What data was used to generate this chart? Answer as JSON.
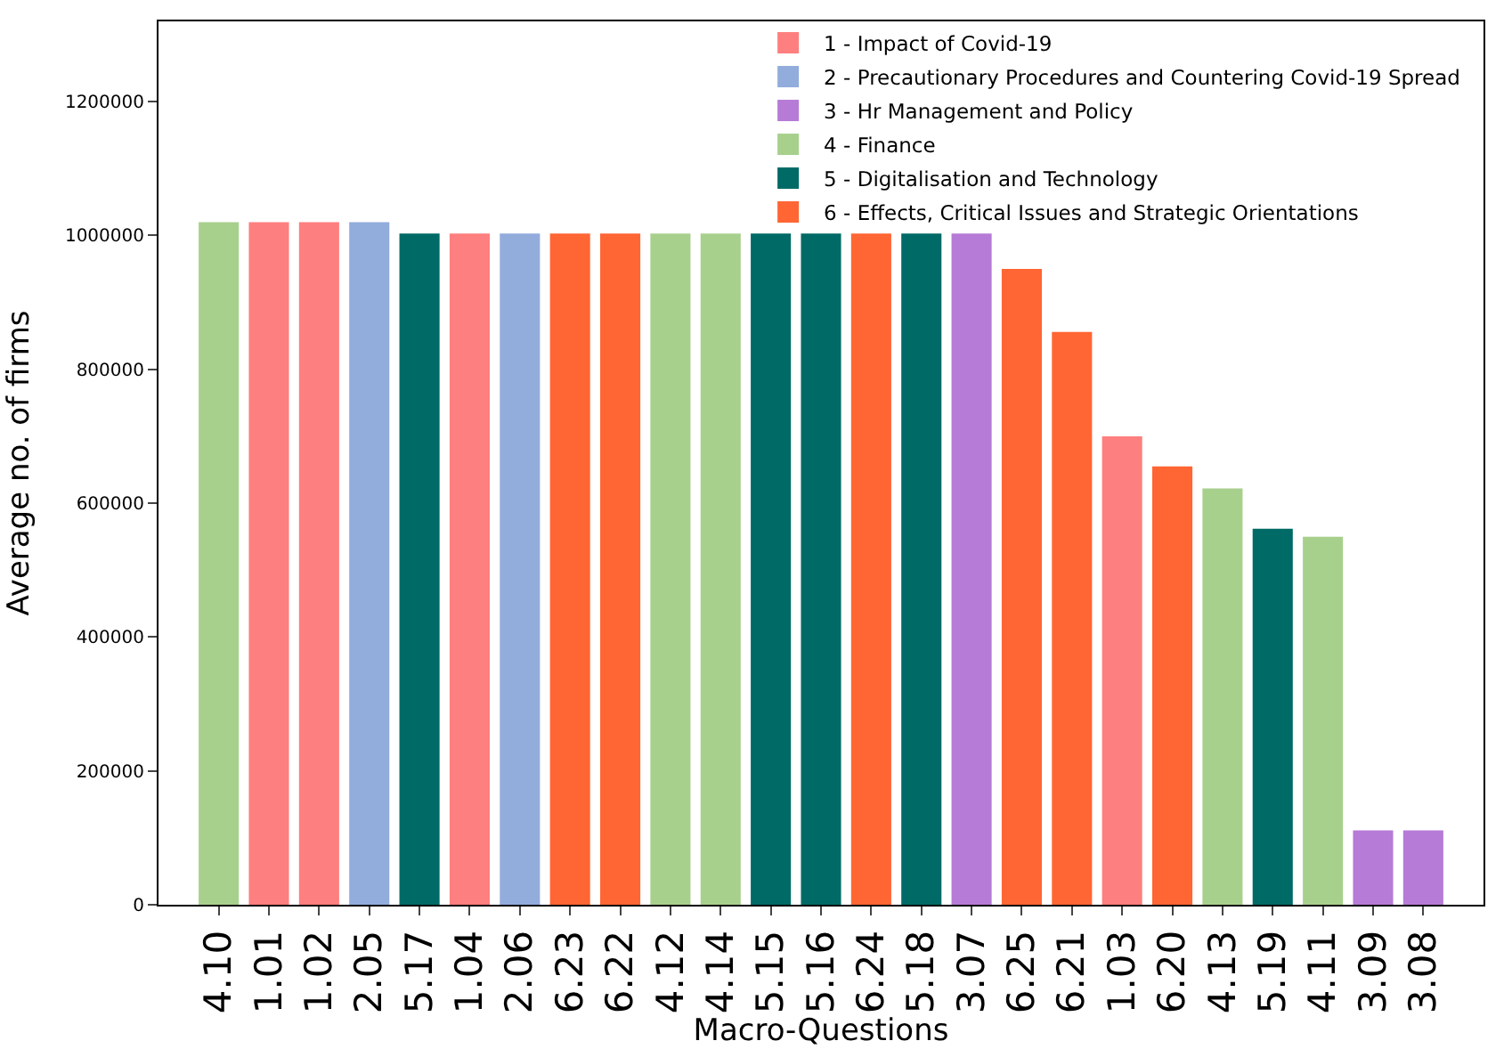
{
  "chart_data": {
    "type": "bar",
    "xlabel": "Macro-Questions",
    "ylabel": "Average no. of firms",
    "categories": [
      "4.10",
      "1.01",
      "1.02",
      "2.05",
      "5.17",
      "1.04",
      "2.06",
      "6.23",
      "6.22",
      "4.12",
      "4.14",
      "5.15",
      "5.16",
      "6.24",
      "5.18",
      "3.07",
      "6.25",
      "6.21",
      "1.03",
      "6.20",
      "4.13",
      "5.19",
      "4.11",
      "3.09",
      "3.08"
    ],
    "series": [
      {
        "name": "1 - Impact of Covid-19",
        "color": "#fe7f7f",
        "values": [
          null,
          1020000,
          1020000,
          null,
          null,
          1003000,
          null,
          null,
          null,
          null,
          null,
          null,
          null,
          null,
          null,
          null,
          null,
          null,
          700000,
          null,
          null,
          null,
          null,
          null,
          null
        ]
      },
      {
        "name": "2 - Precautionary Procedures and Countering Covid-19 Spread",
        "color": "#92acdc",
        "values": [
          null,
          null,
          null,
          1020000,
          null,
          null,
          1003000,
          null,
          null,
          null,
          null,
          null,
          null,
          null,
          null,
          null,
          null,
          null,
          null,
          null,
          null,
          null,
          null,
          null,
          null
        ]
      },
      {
        "name": "3 - Hr Management and Policy",
        "color": "#b57bd6",
        "values": [
          null,
          null,
          null,
          null,
          null,
          null,
          null,
          null,
          null,
          null,
          null,
          null,
          null,
          null,
          null,
          1003000,
          null,
          null,
          null,
          null,
          null,
          null,
          null,
          111000,
          111000
        ]
      },
      {
        "name": "4 - Finance",
        "color": "#a8d08d",
        "values": [
          1020000,
          null,
          null,
          null,
          null,
          null,
          null,
          null,
          null,
          1003000,
          1003000,
          null,
          null,
          null,
          null,
          null,
          null,
          null,
          null,
          null,
          622000,
          null,
          550000,
          null,
          null
        ]
      },
      {
        "name": "5 - Digitalisation and Technology",
        "color": "#006a66",
        "values": [
          null,
          null,
          null,
          null,
          1003000,
          null,
          null,
          null,
          null,
          null,
          null,
          1003000,
          1003000,
          null,
          1003000,
          null,
          null,
          null,
          null,
          null,
          null,
          562000,
          null,
          null,
          null
        ]
      },
      {
        "name": "6 - Effects, Critical Issues and Strategic Orientations",
        "color": "#ff6633",
        "values": [
          null,
          null,
          null,
          null,
          null,
          null,
          null,
          1003000,
          1003000,
          null,
          null,
          null,
          null,
          1003000,
          null,
          null,
          950000,
          856000,
          null,
          655000,
          null,
          null,
          null,
          null,
          null
        ]
      }
    ],
    "ylim": [
      0,
      1320000
    ],
    "yticks": [
      0,
      200000,
      400000,
      600000,
      800000,
      1000000,
      1200000
    ],
    "legend": "top right"
  }
}
